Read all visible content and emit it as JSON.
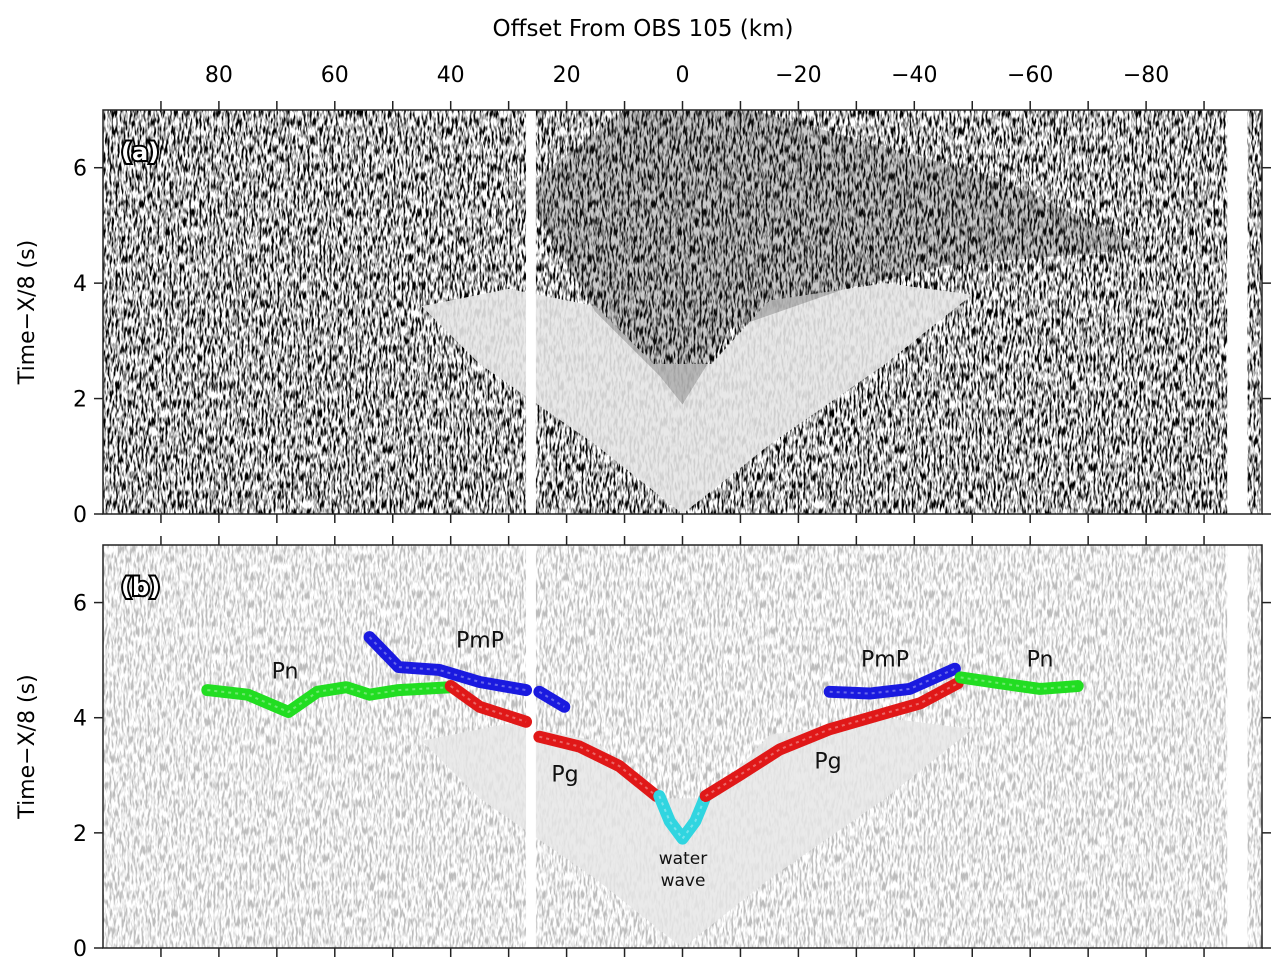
{
  "chart_data": [
    {
      "type": "seismic",
      "panel_label": "(a)",
      "xlabel": "Offset From OBS 105 (km)",
      "ylabel": "Time−X/8 (s)",
      "xlim": [
        100,
        -100
      ],
      "xticks": [
        80,
        60,
        40,
        20,
        0,
        {
          "value": -20,
          "label": "−20"
        },
        {
          "value": -40,
          "label": "−40"
        },
        {
          "value": -60,
          "label": "−60"
        },
        {
          "value": -80,
          "label": "−80"
        }
      ],
      "xminorticks": [
        90,
        70,
        50,
        30,
        10,
        -10,
        -30,
        -50,
        -70,
        -90
      ],
      "ylim": [
        0,
        7
      ],
      "yticks": [
        0,
        2,
        4,
        6
      ]
    },
    {
      "type": "seismic-picks",
      "panel_label": "(b)",
      "ylabel": "Time−X/8 (s)",
      "xlim": [
        100,
        -100
      ],
      "ylim": [
        0,
        7
      ],
      "yticks": [
        0,
        2,
        4,
        6
      ],
      "series": [
        {
          "name": "Pn",
          "color": "#22dd22",
          "x": [
            82,
            75,
            68,
            63,
            58,
            54,
            49,
            40
          ],
          "values": [
            4.48,
            4.4,
            4.1,
            4.45,
            4.53,
            4.4,
            4.48,
            4.53
          ]
        },
        {
          "name": "PmP",
          "color": "#1a1adf",
          "x": [
            54,
            49,
            42,
            35,
            27,
            null,
            24.7,
            20.4
          ],
          "values": [
            5.4,
            4.88,
            4.83,
            4.62,
            4.48,
            null,
            4.45,
            4.19
          ]
        },
        {
          "name": "Pg",
          "color": "#e01818",
          "x": [
            40,
            35,
            27,
            null,
            24.7,
            17.8,
            10.9,
            4.5
          ],
          "values": [
            4.55,
            4.19,
            3.93,
            null,
            3.67,
            3.5,
            3.16,
            2.64
          ]
        },
        {
          "name": "water wave",
          "color": "#30d5e0",
          "x": [
            4,
            2.2,
            0,
            -2.2,
            -4
          ],
          "values": [
            2.64,
            2.2,
            1.9,
            2.2,
            2.64
          ]
        },
        {
          "name": "Pg",
          "color": "#e01818",
          "x": [
            -4,
            -9.8,
            -16.8,
            -25.4,
            -34,
            -41,
            -47.5
          ],
          "values": [
            2.64,
            3.0,
            3.45,
            3.8,
            4.05,
            4.25,
            4.6
          ]
        },
        {
          "name": "PmP",
          "color": "#1a1adf",
          "x": [
            -25.4,
            -32.3,
            -39.2,
            -47
          ],
          "values": [
            4.45,
            4.42,
            4.5,
            4.85
          ]
        },
        {
          "name": "Pn",
          "color": "#22dd22",
          "x": [
            -48,
            -54.7,
            -61.7,
            -68.2
          ],
          "values": [
            4.7,
            4.6,
            4.5,
            4.55
          ]
        }
      ]
    }
  ]
}
